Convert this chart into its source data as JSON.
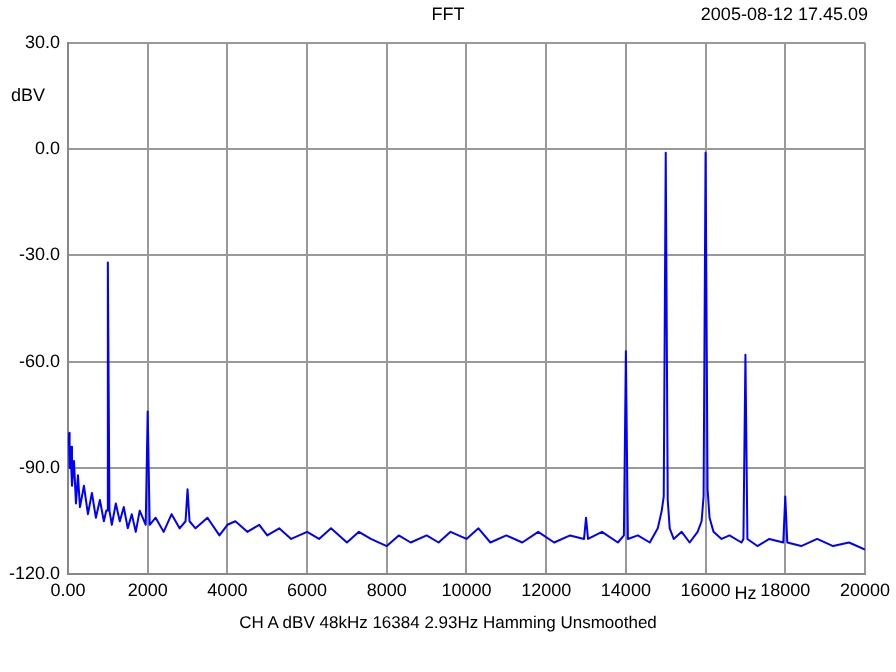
{
  "chart_data": {
    "type": "line",
    "title": "FFT",
    "xlabel": "Hz",
    "ylabel": "dBV",
    "annotations": [
      "2005-08-12 17.45.09",
      "CH A   dBV   48kHz   16384   2.93Hz   Hamming   Unsmoothed"
    ],
    "series": [
      {
        "color": "#0000ff",
        "x": [
          20,
          40,
          60,
          100,
          150,
          200,
          250,
          300,
          400,
          500,
          600,
          700,
          800,
          900,
          960,
          1000,
          1040,
          1100,
          1200,
          1300,
          1400,
          1500,
          1600,
          1700,
          1800,
          1950,
          2000,
          2050,
          2200,
          2400,
          2600,
          2800,
          2950,
          3000,
          3050,
          3200,
          3500,
          3800,
          4000,
          4200,
          4500,
          4800,
          5000,
          5300,
          5600,
          6000,
          6300,
          6600,
          7000,
          7300,
          7600,
          8000,
          8300,
          8600,
          9000,
          9300,
          9600,
          10000,
          10300,
          10600,
          11000,
          11400,
          11800,
          12200,
          12600,
          12950,
          13000,
          13050,
          13400,
          13800,
          13950,
          14000,
          14050,
          14300,
          14600,
          14800,
          14900,
          14950,
          15000,
          15050,
          15100,
          15200,
          15400,
          15600,
          15800,
          15900,
          15950,
          16000,
          16050,
          16100,
          16200,
          16400,
          16600,
          16900,
          16950,
          17000,
          17050,
          17300,
          17600,
          17950,
          18000,
          18050,
          18400,
          18800,
          19200,
          19600,
          20000
        ],
        "values": [
          -80,
          -90,
          -84,
          -95,
          -88,
          -100,
          -92,
          -101,
          -95,
          -103,
          -97,
          -104,
          -99,
          -105,
          -102,
          -32,
          -102,
          -106,
          -100,
          -105,
          -101,
          -107,
          -103,
          -108,
          -102,
          -106,
          -74,
          -106,
          -104,
          -108,
          -103,
          -107,
          -105,
          -96,
          -105,
          -107,
          -104,
          -109,
          -106,
          -105,
          -108,
          -106,
          -109,
          -107,
          -110,
          -108,
          -110,
          -107,
          -111,
          -108,
          -110,
          -112,
          -109,
          -111,
          -109,
          -111,
          -108,
          -110,
          -107,
          -111,
          -109,
          -111,
          -108,
          -111,
          -109,
          -110,
          -104,
          -110,
          -108,
          -111,
          -109,
          -57,
          -110,
          -109,
          -111,
          -107,
          -102,
          -98,
          -1,
          -99,
          -107,
          -110,
          -108,
          -111,
          -108,
          -105,
          -98,
          -1,
          -96,
          -104,
          -108,
          -110,
          -109,
          -111,
          -110,
          -58,
          -110,
          -112,
          -110,
          -111,
          -98,
          -111,
          -112,
          -110,
          -112,
          -111,
          -113
        ]
      }
    ],
    "xlim": [
      0,
      20000
    ],
    "xticks": [
      {
        "value": 0,
        "label": "0.00"
      },
      2000,
      4000,
      6000,
      8000,
      10000,
      12000,
      14000,
      16000,
      18000,
      20000
    ],
    "ylim": [
      -120,
      30
    ],
    "yticks": [
      {
        "value": -120,
        "label": "-120.0"
      },
      {
        "value": -90,
        "label": "-90.0"
      },
      {
        "value": -60,
        "label": "-60.0"
      },
      {
        "value": -30,
        "label": "-30.0"
      },
      {
        "value": 0,
        "label": "0.0"
      },
      {
        "value": 30,
        "label": "30.0"
      }
    ],
    "grid": true,
    "legend": false,
    "marker": "none",
    "line_style": "solid"
  }
}
